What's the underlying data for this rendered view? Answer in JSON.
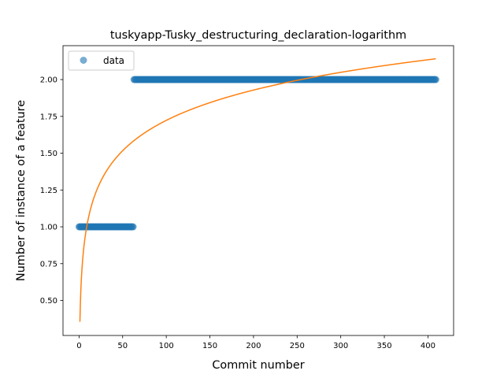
{
  "chart_data": {
    "type": "scatter",
    "title": "tuskyapp-Tusky_destructuring_declaration-logarithm",
    "xlabel": "Commit number",
    "ylabel": "Number of instance of a feature",
    "xlim": [
      -18.4,
      429.4
    ],
    "ylim": [
      0.2622,
      2.2301
    ],
    "x_ticks": [
      0,
      50,
      100,
      150,
      200,
      250,
      300,
      350,
      400
    ],
    "x_tick_labels": [
      "0",
      "50",
      "100",
      "150",
      "200",
      "250",
      "300",
      "350",
      "400"
    ],
    "y_ticks": [
      0.5,
      0.75,
      1.0,
      1.25,
      1.5,
      1.75,
      2.0
    ],
    "y_tick_labels": [
      "0.50",
      "0.75",
      "1.00",
      "1.25",
      "1.50",
      "1.75",
      "2.00"
    ],
    "grid": false,
    "legend": {
      "placement": "top-left",
      "entries": [
        "data"
      ]
    },
    "series": [
      {
        "name": "data",
        "style": "markers",
        "color": "#1f77b4",
        "segments": [
          {
            "x_start": 0,
            "x_end": 62,
            "y": 1
          },
          {
            "x_start": 63,
            "x_end": 409,
            "y": 2
          }
        ]
      },
      {
        "style": "line",
        "color": "#ff7f0e",
        "model": "y = a + b*ln(x)",
        "a": 0.355,
        "b": 0.297,
        "x_range": [
          1,
          409
        ]
      }
    ]
  }
}
